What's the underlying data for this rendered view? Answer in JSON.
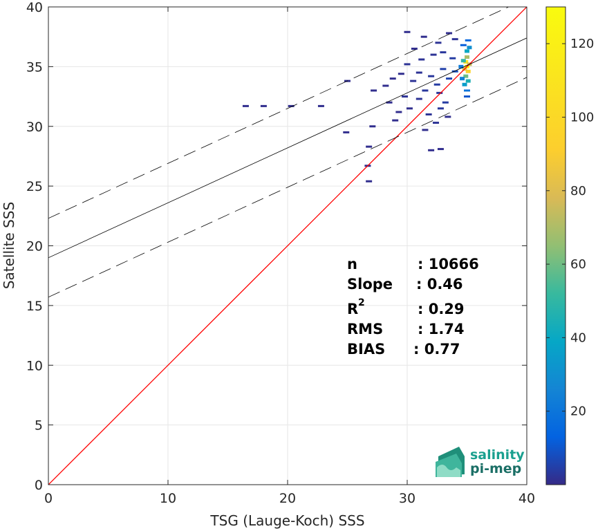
{
  "chart_data": {
    "type": "heatmap",
    "title": "",
    "xlabel": "TSG (Lauge-Koch) SSS",
    "ylabel": "Satellite SSS",
    "xlim": [
      0,
      40
    ],
    "ylim": [
      0,
      40
    ],
    "x_ticks": [
      "0",
      "10",
      "20",
      "30",
      "40"
    ],
    "y_ticks": [
      "0",
      "5",
      "10",
      "15",
      "20",
      "25",
      "30",
      "35",
      "40"
    ],
    "grid": true,
    "colorbar": {
      "min": 0,
      "max": 130,
      "ticks": [
        "20",
        "40",
        "60",
        "80",
        "100",
        "120"
      ]
    },
    "reference_line": {
      "label": "1:1",
      "color": "#ff0000",
      "x": [
        0,
        40
      ],
      "y": [
        0,
        40
      ]
    },
    "fit_line": {
      "slope": 0.46,
      "intercept": 19.0
    },
    "confidence_offset": 3.3,
    "stats": {
      "n_label": "n",
      "n_value": ": 10666",
      "slope_label": "Slope",
      "slope_value": ": 0.46",
      "r2_label": "R",
      "r2_sup": "2",
      "r2_value": ": 0.29",
      "rms_label": "RMS",
      "rms_value": ": 1.74",
      "bias_label": "BIAS",
      "bias_value": ": 0.77"
    },
    "density_points": [
      [
        35.0,
        35.0,
        130
      ],
      [
        34.9,
        35.4,
        110
      ],
      [
        35.1,
        34.6,
        95
      ],
      [
        34.8,
        34.8,
        85
      ],
      [
        35.0,
        35.8,
        70
      ],
      [
        35.2,
        35.2,
        75
      ],
      [
        34.9,
        34.2,
        60
      ],
      [
        35.1,
        33.8,
        45
      ],
      [
        34.7,
        35.5,
        50
      ],
      [
        35.0,
        36.3,
        40
      ],
      [
        34.8,
        33.5,
        35
      ],
      [
        35.2,
        36.6,
        30
      ],
      [
        34.6,
        34.0,
        25
      ],
      [
        35.0,
        33.0,
        20
      ],
      [
        34.5,
        35.0,
        22
      ],
      [
        35.1,
        37.2,
        15
      ],
      [
        34.7,
        36.8,
        12
      ],
      [
        35.0,
        32.5,
        10
      ],
      [
        34.0,
        34.6,
        8
      ],
      [
        33.5,
        34.0,
        6
      ],
      [
        33.0,
        34.8,
        5
      ],
      [
        32.5,
        33.5,
        4
      ],
      [
        32.0,
        34.2,
        3
      ],
      [
        31.5,
        33.0,
        3
      ],
      [
        31.0,
        34.5,
        2
      ],
      [
        30.5,
        33.8,
        2
      ],
      [
        33.2,
        32.0,
        4
      ],
      [
        32.8,
        31.5,
        3
      ],
      [
        31.8,
        31.0,
        2
      ],
      [
        30.2,
        31.5,
        1
      ],
      [
        29.8,
        32.5,
        2
      ],
      [
        30.0,
        35.2,
        2
      ],
      [
        31.2,
        35.6,
        2
      ],
      [
        32.2,
        36.0,
        2
      ],
      [
        33.0,
        36.2,
        3
      ],
      [
        33.8,
        35.7,
        4
      ],
      [
        32.6,
        37.0,
        2
      ],
      [
        30.6,
        36.5,
        1
      ],
      [
        30.0,
        37.9,
        1
      ],
      [
        31.4,
        37.5,
        1
      ],
      [
        32.4,
        30.3,
        2
      ],
      [
        33.4,
        30.8,
        1
      ],
      [
        31.5,
        29.7,
        1
      ],
      [
        33.5,
        37.8,
        1
      ],
      [
        34.0,
        37.3,
        2
      ],
      [
        28.2,
        33.4,
        1
      ],
      [
        29.5,
        34.4,
        1
      ],
      [
        31.0,
        32.3,
        2
      ],
      [
        32.7,
        32.8,
        3
      ],
      [
        28.8,
        34.0,
        1
      ],
      [
        27.2,
        33.0,
        1
      ],
      [
        27.1,
        30.0,
        1
      ],
      [
        26.8,
        28.3,
        1
      ],
      [
        26.7,
        26.7,
        1
      ],
      [
        26.8,
        25.4,
        1
      ],
      [
        28.5,
        32.0,
        1
      ],
      [
        29.0,
        30.5,
        1
      ],
      [
        25.0,
        33.8,
        1
      ],
      [
        24.9,
        29.5,
        1
      ],
      [
        22.8,
        31.7,
        1
      ],
      [
        20.3,
        31.7,
        1
      ],
      [
        18.0,
        31.7,
        1
      ],
      [
        16.5,
        31.7,
        1
      ],
      [
        32.0,
        28.0,
        1
      ],
      [
        32.8,
        28.1,
        1
      ],
      [
        29.3,
        31.2,
        1
      ]
    ]
  },
  "logo": {
    "line1": "salinity",
    "line2": "pi-mep"
  }
}
